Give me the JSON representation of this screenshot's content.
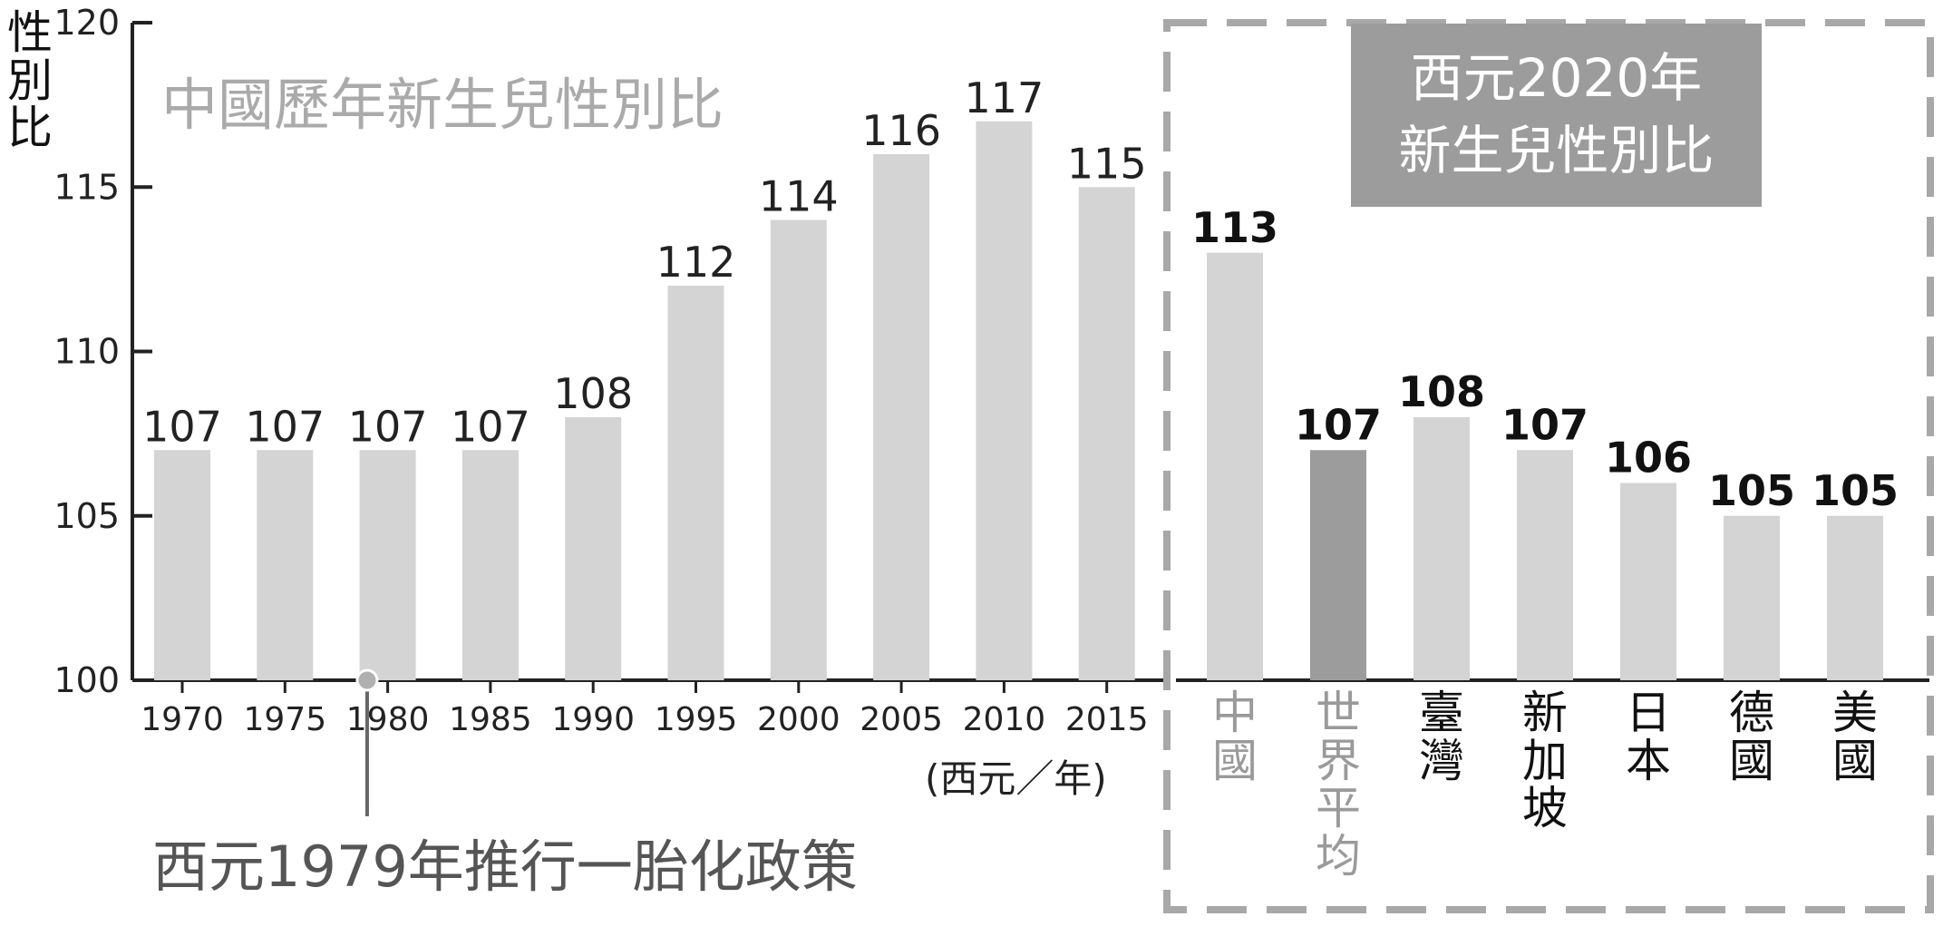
{
  "y_axis_label": "性別比",
  "left_title": "中國歷年新生兒性別比",
  "x_unit_label": "(西元／年)",
  "policy_note": "西元1979年推行一胎化政策",
  "right_title_line1": "西元2020年",
  "right_title_line2": "新生兒性別比",
  "colors": {
    "bar": "#d4d4d4",
    "bar_highlight": "#9c9c9c",
    "axis": "#222222",
    "title_gray": "#aaaaaa",
    "dash_border": "#a8a8a8",
    "marker": "#b0b0b0"
  },
  "chart_data": [
    {
      "type": "bar",
      "title": "中國歷年新生兒性別比",
      "ylabel": "性別比",
      "xlabel": "(西元／年)",
      "ylim": [
        100,
        120
      ],
      "yticks": [
        100,
        105,
        110,
        115,
        120
      ],
      "categories": [
        "1970",
        "1975",
        "1980",
        "1985",
        "1990",
        "1995",
        "2000",
        "2005",
        "2010",
        "2015"
      ],
      "values": [
        107,
        107,
        107,
        107,
        108,
        112,
        114,
        116,
        117,
        115
      ],
      "annotation": {
        "x": 1979,
        "label": "西元1979年推行一胎化政策"
      }
    },
    {
      "type": "bar",
      "title": "西元2020年新生兒性別比",
      "ylim": [
        100,
        120
      ],
      "categories": [
        "中國",
        "世界平均",
        "臺灣",
        "新加坡",
        "日本",
        "德國",
        "美國"
      ],
      "values": [
        113,
        107,
        108,
        107,
        106,
        105,
        105
      ],
      "highlight": "世界平均"
    }
  ]
}
